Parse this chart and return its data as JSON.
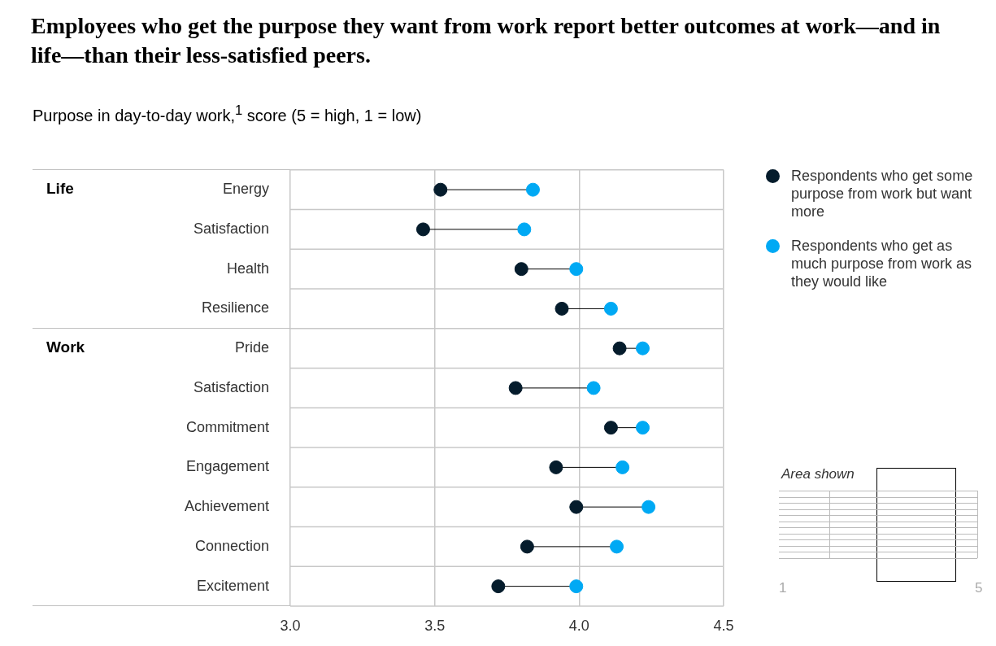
{
  "chart_data": {
    "type": "scatter",
    "title": "Employees who get the purpose they want from work report better outcomes at work—and in life—than their less-satisfied peers.",
    "subtitle": "Purpose in day-to-day work,$^{1}$ score (5 = high, 1 = low)",
    "categories": [
      "Energy",
      "Satisfaction",
      "Health",
      "Resilience",
      "Pride",
      "Satisfaction",
      "Commitment",
      "Engagement",
      "Achievement",
      "Connection",
      "Excitement"
    ],
    "series": [
      {
        "name": "Respondents who get some purpose from work but want more",
        "color": "#051c2c",
        "values": [
          3.52,
          3.46,
          3.8,
          3.94,
          4.14,
          3.78,
          4.11,
          3.92,
          3.99,
          3.82,
          3.72
        ]
      },
      {
        "name": "Respondents who get as much purpose from work as they would like",
        "color": "#00a9f4",
        "values": [
          3.84,
          3.81,
          3.99,
          4.11,
          4.22,
          4.05,
          4.22,
          4.15,
          4.24,
          4.13,
          3.99
        ]
      }
    ],
    "orientation": "horizontal",
    "xlim": [
      3,
      4.5
    ],
    "xticks": [
      {
        "value": 3,
        "label": "3.0"
      },
      {
        "value": 3.5,
        "label": "3.5"
      },
      {
        "value": 4,
        "label": "4.0"
      },
      {
        "value": 4.5,
        "label": "4.5"
      }
    ],
    "grid": true,
    "legend": "top right",
    "marker": "circle",
    "annotations": [
      "Life",
      "Work",
      "Area shown",
      "1",
      "5"
    ]
  }
}
